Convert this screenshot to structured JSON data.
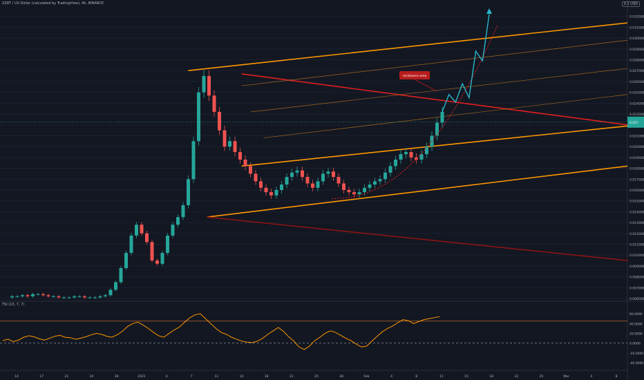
{
  "header": {
    "title": "XZ8T / US Dollar (calculated by TradingView), 4h, BINANCE",
    "corner_label": "0.1 USD"
  },
  "indicator": {
    "label": "TSI (13, 7, 7)"
  },
  "chart_data": [
    {
      "type": "line",
      "title": "XZ8T / US Dollar (calculated by TradingView), 4h, BINANCE",
      "y_ticks": [
        "0.0320000",
        "0.0310000",
        "0.0300000",
        "0.0290000",
        "0.0280000",
        "0.0270000",
        "0.0260000",
        "0.0250000",
        "0.0240000",
        "0.0230000",
        "0.0220000",
        "0.0210000",
        "0.0200000",
        "0.0190000",
        "0.0180000",
        "0.0170000",
        "0.0160000",
        "0.0150000",
        "0.0140000",
        "0.0130000",
        "0.0120000",
        "0.0110000",
        "0.0100000",
        "0.0090000",
        "0.0080000",
        "0.0070000",
        "0.0060000"
      ],
      "ylim": [
        0.006,
        0.033
      ],
      "x_ticks": [
        "14",
        "17",
        "21",
        "24",
        "28",
        "2021",
        "4",
        "7",
        "11",
        "14",
        "18",
        "21",
        "25",
        "28",
        "Feb",
        "4",
        "8",
        "11",
        "15",
        "18",
        "22",
        "25",
        "Mar",
        "4",
        "8"
      ],
      "last_price_label": "0.02?",
      "annotations": [
        "resistance area"
      ],
      "trendlines": [
        {
          "color": "#ff9800",
          "from": [
            0.3,
            0.027
          ],
          "to": [
            1.0,
            0.0314
          ]
        },
        {
          "color": "#ff9800",
          "from": [
            0.385,
            0.0182
          ],
          "to": [
            1.0,
            0.0219
          ]
        },
        {
          "color": "#ff9800",
          "from": [
            0.33,
            0.0135
          ],
          "to": [
            1.0,
            0.0182
          ]
        },
        {
          "color": "#e31f1f",
          "from": [
            0.385,
            0.0267
          ],
          "to": [
            1.0,
            0.022
          ]
        },
        {
          "color": "#8b1414",
          "from": [
            0.33,
            0.0135
          ],
          "to": [
            1.0,
            0.0095
          ]
        }
      ],
      "price_series": [
        0.0061,
        0.0062,
        0.0062,
        0.0063,
        0.0062,
        0.0064,
        0.0064,
        0.0063,
        0.0062,
        0.0062,
        0.0061,
        0.0061,
        0.0061,
        0.0062,
        0.0062,
        0.0061,
        0.0061,
        0.0061,
        0.0062,
        0.0063,
        0.0068,
        0.0075,
        0.0088,
        0.0102,
        0.0118,
        0.0128,
        0.012,
        0.0112,
        0.0095,
        0.0092,
        0.0102,
        0.0118,
        0.0128,
        0.0135,
        0.0146,
        0.017,
        0.0205,
        0.025,
        0.0265,
        0.0247,
        0.0232,
        0.0215,
        0.02,
        0.0205,
        0.0195,
        0.0188,
        0.0182,
        0.0175,
        0.0168,
        0.0162,
        0.0158,
        0.0155,
        0.016,
        0.0165,
        0.0172,
        0.0176,
        0.0178,
        0.0172,
        0.0166,
        0.0162,
        0.0168,
        0.0175,
        0.0177,
        0.0172,
        0.0166,
        0.016,
        0.0158,
        0.0156,
        0.0158,
        0.0162,
        0.0165,
        0.0168,
        0.017,
        0.0176,
        0.0182,
        0.0188,
        0.0193,
        0.0195,
        0.019,
        0.0188,
        0.0193,
        0.02,
        0.021,
        0.0222,
        0.0232
      ],
      "projection": [
        0.0232,
        0.0248,
        0.0241,
        0.0258,
        0.0245,
        0.0288,
        0.0279,
        0.0322
      ]
    },
    {
      "type": "line",
      "title": "TSI (13, 7, 7)",
      "y_ticks": [
        "60.0000",
        "40.0000",
        "20.0000",
        "0.0000",
        "-20.0000",
        "-40.0000"
      ],
      "ylim": [
        -50,
        80
      ],
      "levels": [
        45,
        0
      ],
      "values": [
        5,
        8,
        3,
        6,
        12,
        15,
        13,
        9,
        6,
        10,
        14,
        16,
        12,
        11,
        8,
        10,
        13,
        17,
        20,
        18,
        14,
        12,
        17,
        24,
        34,
        40,
        43,
        37,
        30,
        22,
        15,
        12,
        20,
        27,
        33,
        43,
        52,
        58,
        60,
        50,
        40,
        30,
        22,
        18,
        12,
        8,
        4,
        2,
        1,
        4,
        10,
        18,
        25,
        32,
        24,
        13,
        4,
        -8,
        -13,
        -6,
        5,
        12,
        20,
        25,
        22,
        16,
        10,
        5,
        -2,
        -8,
        -6,
        4,
        14,
        23,
        30,
        35,
        42,
        48,
        46,
        40,
        44,
        48,
        50,
        52,
        54
      ]
    }
  ]
}
